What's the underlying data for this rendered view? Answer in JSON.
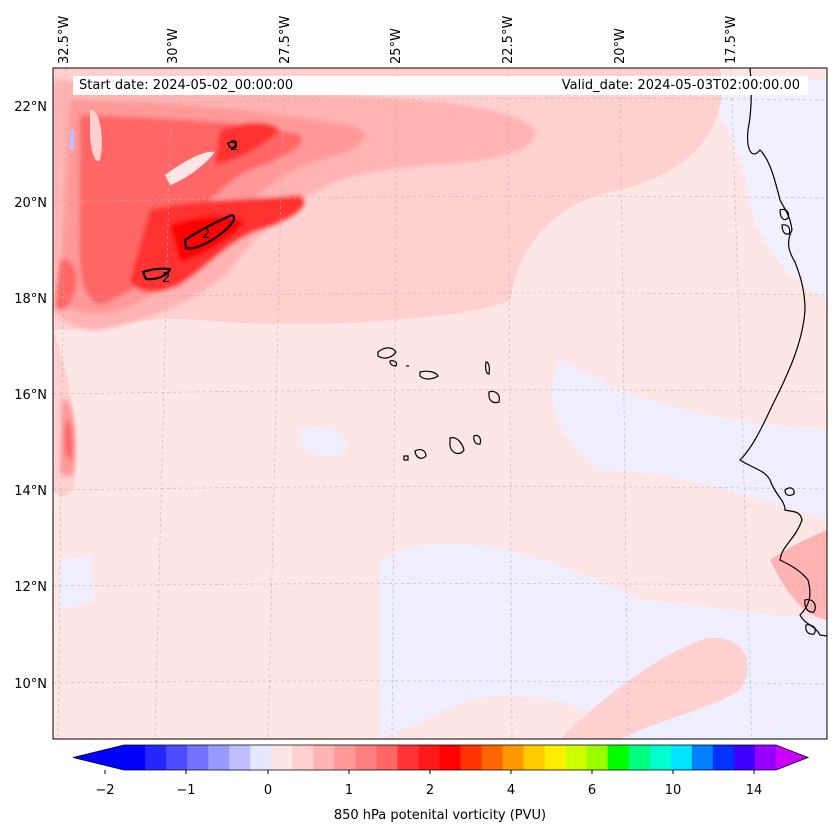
{
  "header": {
    "start_date": "Start date: 2024-05-02_00:00:00",
    "valid_date": "Valid_date: 2024-05-03T02:00:00.00"
  },
  "map": {
    "type": "filled-contour map",
    "projection": "Lambert conformal",
    "lon_labels": [
      "32.5°W",
      "30°W",
      "27.5°W",
      "25°W",
      "22.5°W",
      "20°W",
      "17.5°W"
    ],
    "lat_labels": [
      "22°N",
      "20°N",
      "18°N",
      "16°N",
      "14°N",
      "12°N",
      "10°N"
    ],
    "gridlines": true,
    "contour_line_labels": [
      "2",
      "2",
      "2"
    ],
    "features": [
      "Cape Verde islands",
      "West African coastline"
    ]
  },
  "colorbar": {
    "title": "850 hPa potenital vorticity (PVU)",
    "tick_labels": [
      "−2",
      "−1",
      "0",
      "1",
      "2",
      "4",
      "6",
      "10",
      "14"
    ],
    "extend": "both",
    "colors": [
      "#0000ff",
      "#2626ff",
      "#4d4dff",
      "#7373ff",
      "#9999ff",
      "#bfbfff",
      "#e6e6ff",
      "#ffe6e6",
      "#ffd0d0",
      "#ffb3b3",
      "#ff9999",
      "#ff8080",
      "#ff6666",
      "#ff3333",
      "#ff1a1a",
      "#ff0000",
      "#ff3300",
      "#ff6600",
      "#ff9900",
      "#ffcc00",
      "#ffee00",
      "#ccff00",
      "#99ff00",
      "#00ff00",
      "#00ff80",
      "#00ffcc",
      "#00e5ff",
      "#0080ff",
      "#0033ff",
      "#4000ff",
      "#9900ff"
    ],
    "under_color": "#0000ff",
    "over_color": "#cc00ff"
  }
}
